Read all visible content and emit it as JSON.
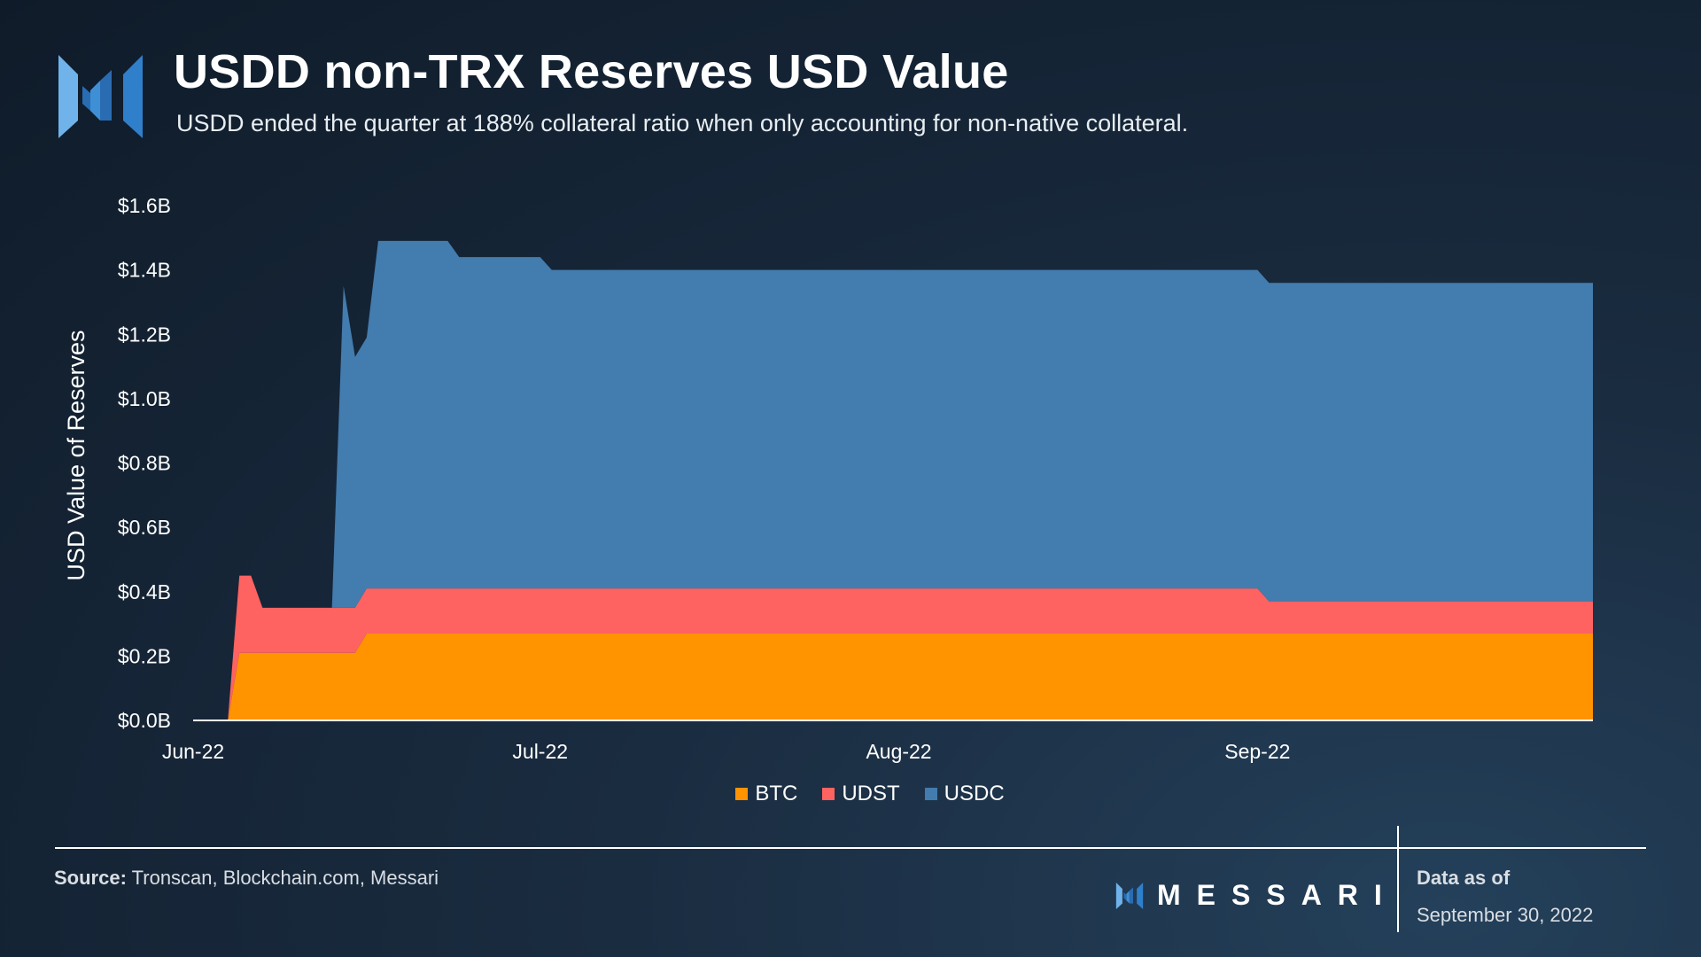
{
  "header": {
    "title": "USDD non-TRX Reserves USD Value",
    "subtitle": "USDD ended the quarter at 188% collateral ratio when only accounting for non-native collateral."
  },
  "colors": {
    "btc": "#ff9300",
    "udst": "#ff6361",
    "usdc": "#437cae",
    "axis": "#ffffff"
  },
  "chart_data": {
    "type": "area",
    "stacked": true,
    "title": "USDD non-TRX Reserves USD Value",
    "xlabel": "",
    "ylabel": "USD Value of Reserves",
    "ylim": [
      0,
      1.6
    ],
    "y_unit": "billions USD",
    "yticks": [
      0,
      0.2,
      0.4,
      0.6,
      0.8,
      1.0,
      1.2,
      1.4,
      1.6
    ],
    "ytick_labels": [
      "$0.0B",
      "$0.2B",
      "$0.4B",
      "$0.6B",
      "$0.8B",
      "$1.0B",
      "$1.2B",
      "$1.4B",
      "$1.6B"
    ],
    "xlim": [
      0,
      121
    ],
    "x_unit": "days since 2022-06-01",
    "xticks": [
      0,
      30,
      61,
      92
    ],
    "xtick_labels": [
      "Jun-22",
      "Jul-22",
      "Aug-22",
      "Sep-22"
    ],
    "x": [
      3,
      4,
      5,
      6,
      7,
      12,
      13,
      14,
      15,
      16,
      17,
      22,
      23,
      30,
      31,
      92,
      93,
      121
    ],
    "series": [
      {
        "name": "BTC",
        "values": [
          0,
          0.21,
          0.21,
          0.21,
          0.21,
          0.21,
          0.21,
          0.21,
          0.27,
          0.27,
          0.27,
          0.27,
          0.27,
          0.27,
          0.27,
          0.27,
          0.27,
          0.27
        ]
      },
      {
        "name": "UDST",
        "values": [
          0,
          0.24,
          0.24,
          0.14,
          0.14,
          0.14,
          0.14,
          0.14,
          0.14,
          0.14,
          0.14,
          0.14,
          0.14,
          0.14,
          0.14,
          0.14,
          0.1,
          0.1
        ]
      },
      {
        "name": "USDC",
        "values": [
          0,
          0,
          0,
          0,
          0,
          0,
          1.0,
          0.78,
          0.78,
          1.08,
          1.08,
          1.08,
          1.03,
          1.03,
          0.99,
          0.99,
          0.99,
          0.99
        ]
      }
    ],
    "legend": [
      "BTC",
      "UDST",
      "USDC"
    ],
    "legend_position": "bottom-center",
    "grid": false
  },
  "footer": {
    "source_label": "Source:",
    "source_text": " Tronscan, Blockchain.com, Messari",
    "brand": "MESSARI",
    "data_as_of_label": "Data as of",
    "data_as_of_date": "September 30, 2022"
  }
}
